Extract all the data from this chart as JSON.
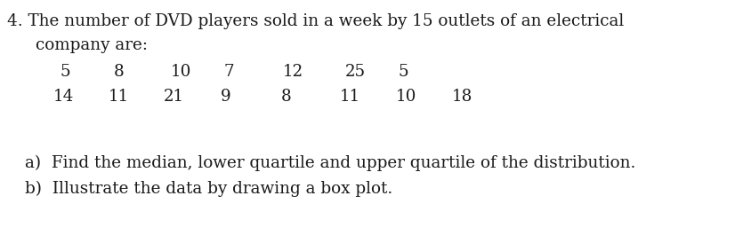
{
  "line1": "4. The number of DVD players sold in a week by 15 outlets of an electrical",
  "line2": "company are:",
  "row1_nums": [
    "5",
    "8",
    "10",
    "7",
    "12",
    "25",
    "5"
  ],
  "row2_nums": [
    "14",
    "11",
    "21",
    "9",
    "8",
    "11",
    "10",
    "18"
  ],
  "part_a": "a)  Find the median, lower quartile and upper quartile of the distribution.",
  "part_b": "b)  Illustrate the data by drawing a box plot.",
  "bg_color": "#ffffff",
  "text_color": "#1a1a1a",
  "font_size": 13.2
}
